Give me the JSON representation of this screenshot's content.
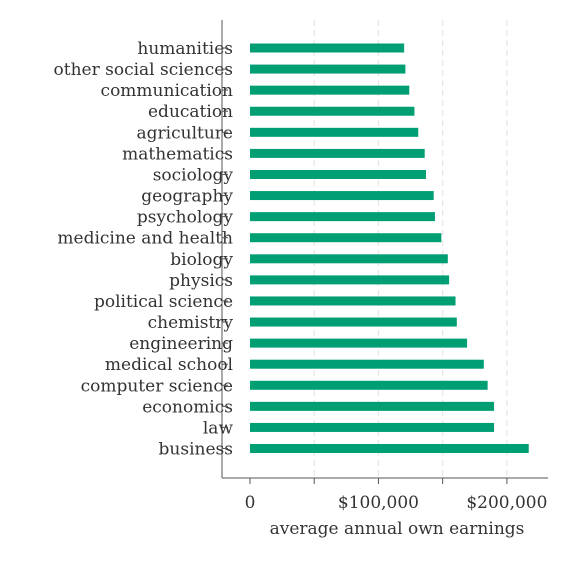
{
  "chart_data": {
    "type": "bar",
    "orientation": "horizontal",
    "title": "",
    "xlabel": "average annual own earnings",
    "ylabel": "",
    "xlim": [
      0,
      232000
    ],
    "grid": "vertical dashed",
    "bar_color": "#009e73",
    "categories": [
      "humanities",
      "other social sciences",
      "communication",
      "education",
      "agriculture",
      "mathematics",
      "sociology",
      "geography",
      "psychology",
      "medicine and health",
      "biology",
      "physics",
      "political science",
      "chemistry",
      "engineering",
      "medical school",
      "computer science",
      "economics",
      "law",
      "business"
    ],
    "values": [
      120000,
      121000,
      124000,
      128000,
      131000,
      136000,
      137000,
      143000,
      144000,
      149000,
      154000,
      155000,
      160000,
      161000,
      169000,
      182000,
      185000,
      190000,
      190000,
      217000
    ],
    "x_ticks": [
      {
        "value": 0,
        "label": "0"
      },
      {
        "value": 50000,
        "label": ""
      },
      {
        "value": 100000,
        "label": "$100,000"
      },
      {
        "value": 150000,
        "label": ""
      },
      {
        "value": 200000,
        "label": "$200,000"
      }
    ]
  }
}
